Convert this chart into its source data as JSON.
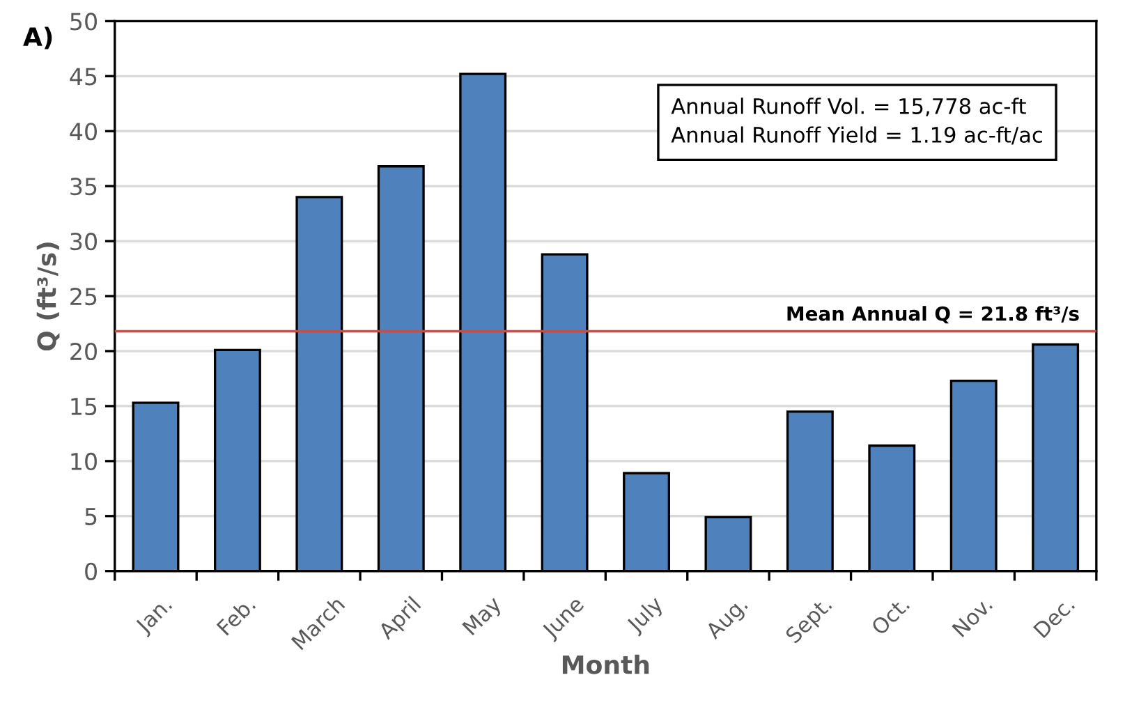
{
  "chart_data": {
    "type": "bar",
    "xlabel": "Month",
    "ylabel": "Q (ft³/s)",
    "categories": [
      "Jan.",
      "Feb.",
      "March",
      "April",
      "May",
      "June",
      "July",
      "Aug.",
      "Sept.",
      "Oct.",
      "Nov.",
      "Dec."
    ],
    "values": [
      15.3,
      20.1,
      34.0,
      36.8,
      45.2,
      28.8,
      8.9,
      4.9,
      14.5,
      11.4,
      17.3,
      20.6
    ],
    "color": "#4f81bd",
    "ylim": [
      0,
      50
    ],
    "yticks": [
      0,
      5,
      10,
      15,
      20,
      25,
      30,
      35,
      40,
      45,
      50
    ],
    "grid": "y",
    "ref_lines": [
      {
        "axis": "y",
        "value": 21.8,
        "label": "Mean Annual Q = 21.8 ft³/s",
        "color": "#c0504d"
      }
    ],
    "annotations": [
      "A)",
      "Annual Runoff Vol. = 15,778 ac-ft\nAnnual Runoff Yield = 1.19 ac-ft/ac"
    ]
  }
}
